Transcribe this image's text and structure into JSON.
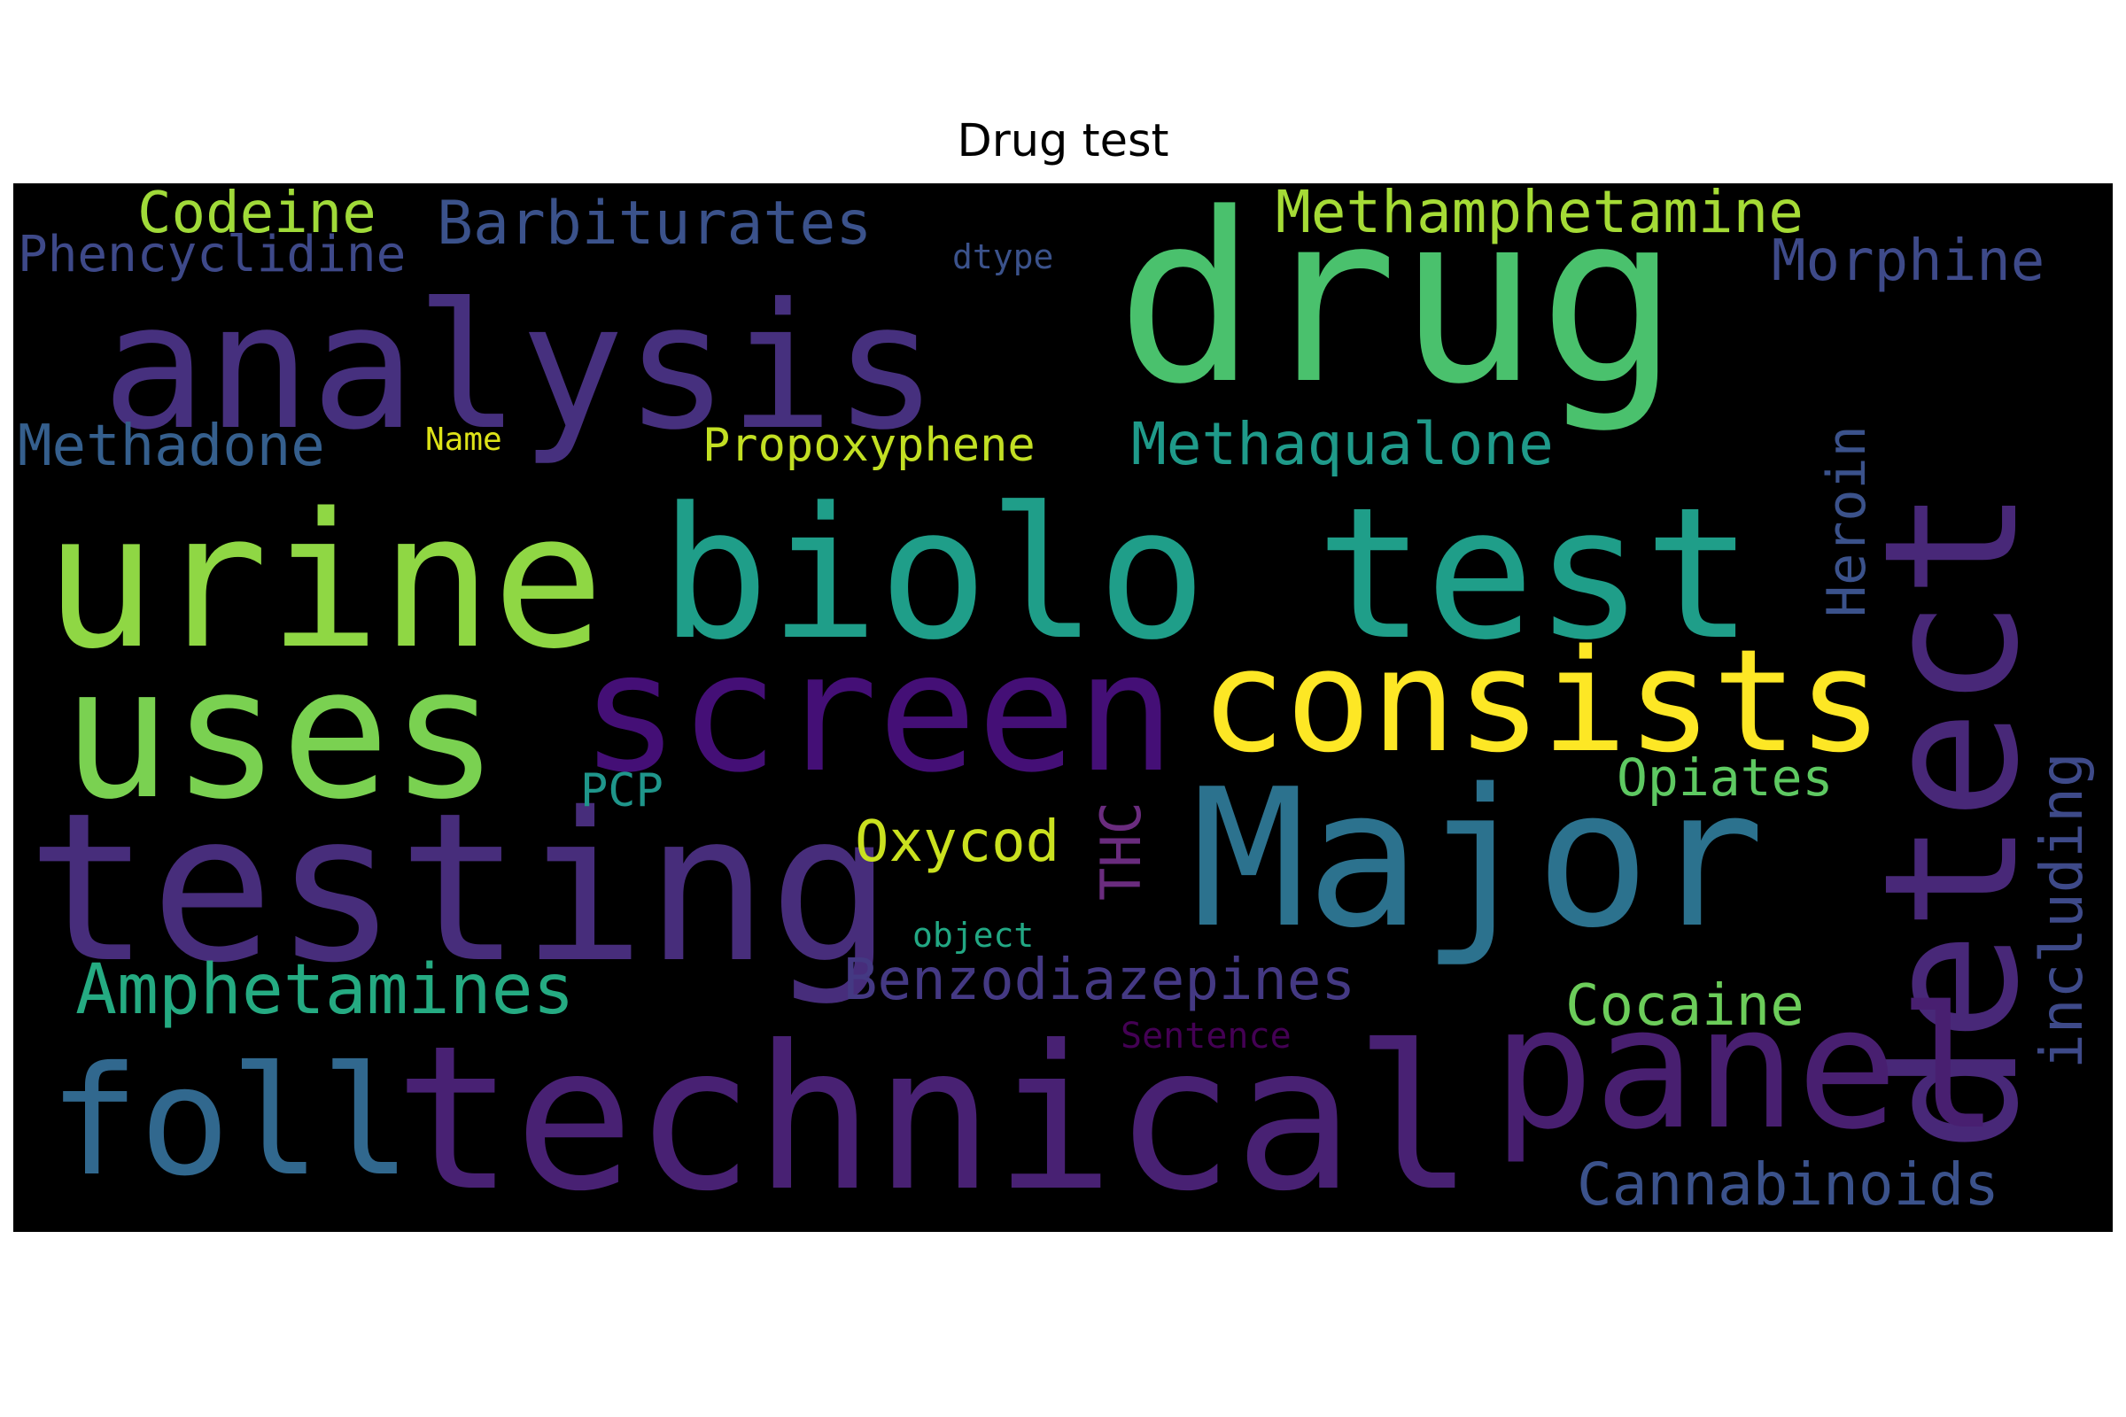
{
  "title": "Drug test",
  "words": [
    {
      "text": "drug",
      "color": "#4ac16d"
    },
    {
      "text": "analysis",
      "color": "#46307e"
    },
    {
      "text": "biolo test",
      "color": "#1f9e89"
    },
    {
      "text": "urine",
      "color": "#8fd744"
    },
    {
      "text": "uses",
      "color": "#7ad151"
    },
    {
      "text": "screen",
      "color": "#440f76"
    },
    {
      "text": "consists",
      "color": "#fde725"
    },
    {
      "text": "testing",
      "color": "#472d7b"
    },
    {
      "text": "Major",
      "color": "#2c728e"
    },
    {
      "text": "detect",
      "color": "#482878"
    },
    {
      "text": "technical",
      "color": "#482173"
    },
    {
      "text": "foll",
      "color": "#31688e"
    },
    {
      "text": "panel",
      "color": "#481f70"
    },
    {
      "text": "Codeine",
      "color": "#a0da39"
    },
    {
      "text": "Barbiturates",
      "color": "#3b528b"
    },
    {
      "text": "Methamphetamine",
      "color": "#a5db36"
    },
    {
      "text": "Phencyclidine",
      "color": "#3e4989"
    },
    {
      "text": "Morphine",
      "color": "#3e4a89"
    },
    {
      "text": "dtype",
      "color": "#3b528b"
    },
    {
      "text": "Methadone",
      "color": "#355f8d"
    },
    {
      "text": "Name",
      "color": "#dde318"
    },
    {
      "text": "Propoxyphene",
      "color": "#c2df23"
    },
    {
      "text": "Methaqualone",
      "color": "#1f9a8a"
    },
    {
      "text": "Heroin",
      "color": "#3b528b"
    },
    {
      "text": "including",
      "color": "#3e4a89"
    },
    {
      "text": "Opiates",
      "color": "#5ec962"
    },
    {
      "text": "PCP",
      "color": "#1f968b"
    },
    {
      "text": "Oxycod",
      "color": "#cae11f"
    },
    {
      "text": "THC",
      "color": "#6a2c7e"
    },
    {
      "text": "Amphetamines",
      "color": "#25ab82"
    },
    {
      "text": "Benzodiazepines",
      "color": "#443983"
    },
    {
      "text": "object",
      "color": "#22a884"
    },
    {
      "text": "Cocaine",
      "color": "#6ccd5a"
    },
    {
      "text": "Sentence",
      "color": "#440154"
    },
    {
      "text": "Cannabinoids",
      "color": "#3b528b"
    }
  ]
}
